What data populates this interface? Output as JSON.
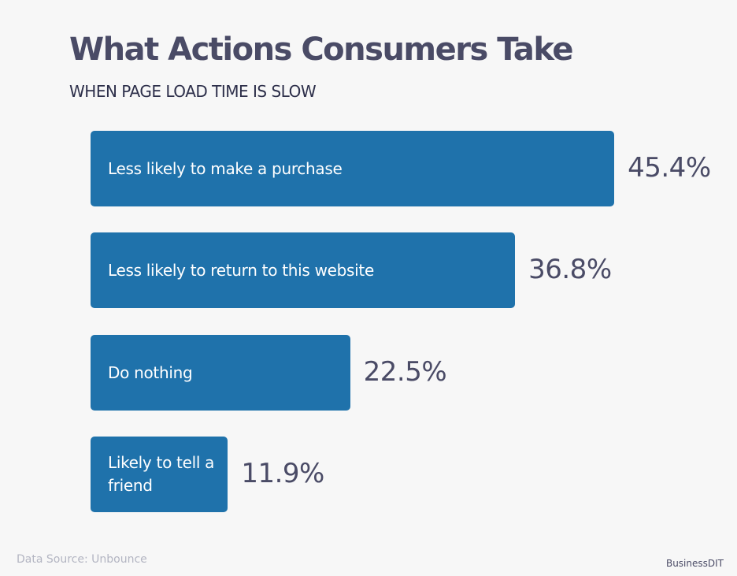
{
  "chart_data": {
    "type": "bar",
    "orientation": "horizontal",
    "title": "What Actions Consumers Take",
    "subtitle": "WHEN PAGE LOAD TIME IS SLOW",
    "categories": [
      "Less likely to make a purchase",
      "Less likely to return to this website",
      "Do nothing",
      "Likely to tell a friend"
    ],
    "values": [
      45.4,
      36.8,
      22.5,
      11.9
    ],
    "labels": [
      "45.4%",
      "36.8%",
      "22.5%",
      "11.9%"
    ],
    "bar_color": "#1f72ab",
    "grid": false
  },
  "footer": {
    "source": "Data Source: Unbounce",
    "brand": "BusinessDIT"
  }
}
